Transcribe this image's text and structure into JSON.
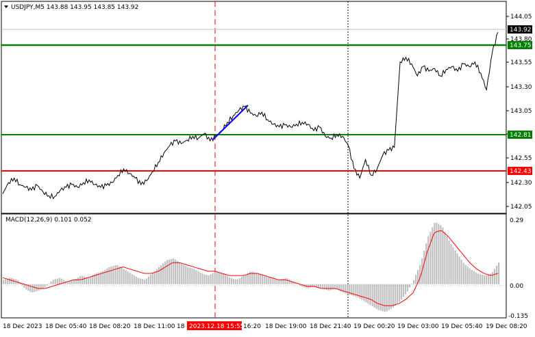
{
  "header": {
    "symbol_line": "USDJPY,M5  143.88 143.95 143.85 143.92",
    "menu_icon": "triangle-down-icon"
  },
  "macd": {
    "label": "MACD(12,26,9) 0.101 0.052",
    "ticks": [
      "0.29",
      "0.00",
      "-0.135"
    ]
  },
  "price_axis": {
    "ticks": [
      "144.05",
      "143.80",
      "143.55",
      "143.30",
      "143.05",
      "142.80",
      "142.55",
      "142.30",
      "142.05"
    ]
  },
  "levels": {
    "current": {
      "value": "143.92",
      "color": "#000000"
    },
    "upper_green": {
      "value": "143.75",
      "color": "#008000"
    },
    "lower_green": {
      "value": "142.81",
      "color": "#008000"
    },
    "red": {
      "value": "142.43",
      "color": "#ff0000"
    }
  },
  "time_axis": {
    "labels": [
      "18 Dec 2023",
      "18 Dec 05:40",
      "18 Dec 08:20",
      "18 Dec 11:00",
      "18",
      "16:20",
      "18 Dec 19:00",
      "18 Dec 21:40",
      "19 Dec 00:20",
      "19 Dec 03:00",
      "19 Dec 05:40",
      "19 Dec 08:20"
    ],
    "highlight": "2023.12.18 15:55"
  },
  "colors": {
    "price_line": "#000000",
    "trend_line": "#0000ff",
    "macd_hist": "#c0c0c0",
    "macd_signal": "#ff0000",
    "green_level": "#008000",
    "red_level": "#ff0000",
    "vline_red": "#ff0000"
  },
  "chart_data": {
    "type": "line",
    "price": [
      142.18,
      142.3,
      142.35,
      142.28,
      142.25,
      142.22,
      142.27,
      142.2,
      142.16,
      142.15,
      142.22,
      142.25,
      142.28,
      142.25,
      142.3,
      142.33,
      142.28,
      142.25,
      142.27,
      142.3,
      142.38,
      142.45,
      142.4,
      142.35,
      142.28,
      142.32,
      142.42,
      142.52,
      142.62,
      142.7,
      142.75,
      142.72,
      142.76,
      142.8,
      142.78,
      142.83,
      142.75,
      142.8,
      142.86,
      142.95,
      143.02,
      143.08,
      143.12,
      143.05,
      143.02,
      143.06,
      142.98,
      142.93,
      142.9,
      142.92,
      142.9,
      142.93,
      142.95,
      142.93,
      142.86,
      142.9,
      142.8,
      142.78,
      142.82,
      142.8,
      142.7,
      142.45,
      142.35,
      142.55,
      142.38,
      142.45,
      142.6,
      142.65,
      142.68,
      143.6,
      143.65,
      143.58,
      143.45,
      143.55,
      143.5,
      143.53,
      143.45,
      143.52,
      143.55,
      143.5,
      143.58,
      143.55,
      143.6,
      143.48,
      143.3,
      143.7,
      143.92
    ],
    "macd_hist": [
      0.02,
      0.03,
      0.02,
      -0.02,
      -0.04,
      -0.03,
      -0.01,
      0.02,
      0.03,
      0.01,
      0.02,
      0.04,
      0.03,
      0.05,
      0.06,
      0.08,
      0.09,
      0.07,
      0.05,
      0.03,
      0.02,
      0.05,
      0.08,
      0.11,
      0.12,
      0.1,
      0.08,
      0.07,
      0.05,
      0.04,
      0.06,
      0.05,
      0.03,
      0.02,
      0.04,
      0.06,
      0.05,
      0.04,
      0.03,
      0.02,
      0.03,
      0.01,
      -0.01,
      -0.02,
      -0.01,
      -0.02,
      -0.03,
      -0.02,
      -0.04,
      -0.05,
      -0.06,
      -0.08,
      -0.1,
      -0.12,
      -0.13,
      -0.11,
      -0.08,
      -0.04,
      0.02,
      0.1,
      0.22,
      0.29,
      0.27,
      0.2,
      0.15,
      0.1,
      0.07,
      0.05,
      0.04,
      0.05,
      0.1
    ],
    "macd_signal": [
      0.03,
      0.02,
      0.01,
      0.0,
      -0.01,
      -0.02,
      -0.02,
      -0.01,
      0.0,
      0.01,
      0.02,
      0.02,
      0.03,
      0.04,
      0.05,
      0.06,
      0.07,
      0.08,
      0.07,
      0.06,
      0.05,
      0.05,
      0.06,
      0.08,
      0.1,
      0.1,
      0.09,
      0.08,
      0.07,
      0.06,
      0.06,
      0.05,
      0.04,
      0.04,
      0.04,
      0.05,
      0.05,
      0.04,
      0.03,
      0.02,
      0.02,
      0.01,
      0.0,
      -0.01,
      -0.01,
      -0.02,
      -0.02,
      -0.02,
      -0.03,
      -0.04,
      -0.05,
      -0.06,
      -0.07,
      -0.09,
      -0.1,
      -0.1,
      -0.09,
      -0.07,
      -0.04,
      0.03,
      0.15,
      0.24,
      0.25,
      0.22,
      0.18,
      0.14,
      0.1,
      0.07,
      0.05,
      0.04,
      0.05
    ],
    "price_ylim": [
      142.0,
      144.12
    ],
    "macd_ylim": [
      -0.15,
      0.31
    ]
  }
}
